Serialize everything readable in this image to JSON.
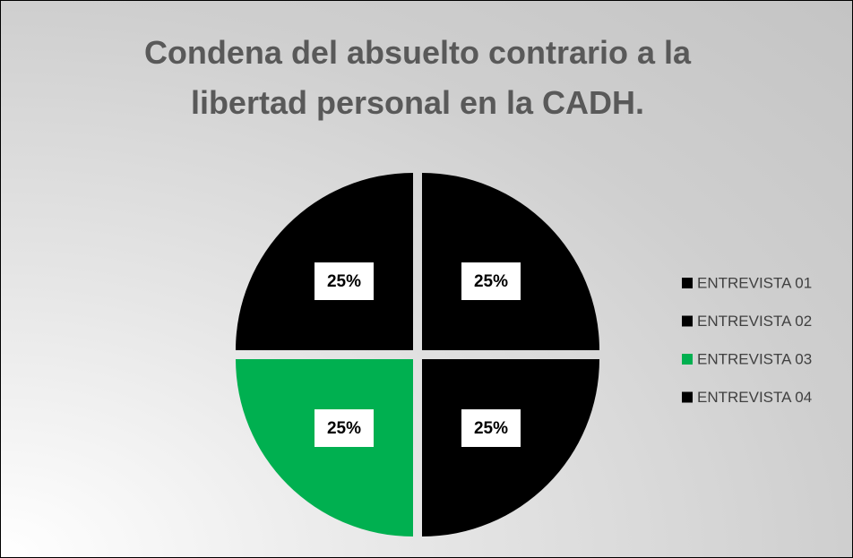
{
  "chart_data": {
    "type": "pie",
    "title": "Condena del absuelto contrario a la libertad personal en la CADH.",
    "categories": [
      "ENTREVISTA 01",
      "ENTREVISTA 02",
      "ENTREVISTA 03",
      "ENTREVISTA 04"
    ],
    "values": [
      25,
      25,
      25,
      25
    ],
    "value_labels": [
      "25%",
      "25%",
      "25%",
      "25%"
    ],
    "colors": [
      "#000000",
      "#000000",
      "#00b050",
      "#000000"
    ],
    "legend": "right"
  }
}
